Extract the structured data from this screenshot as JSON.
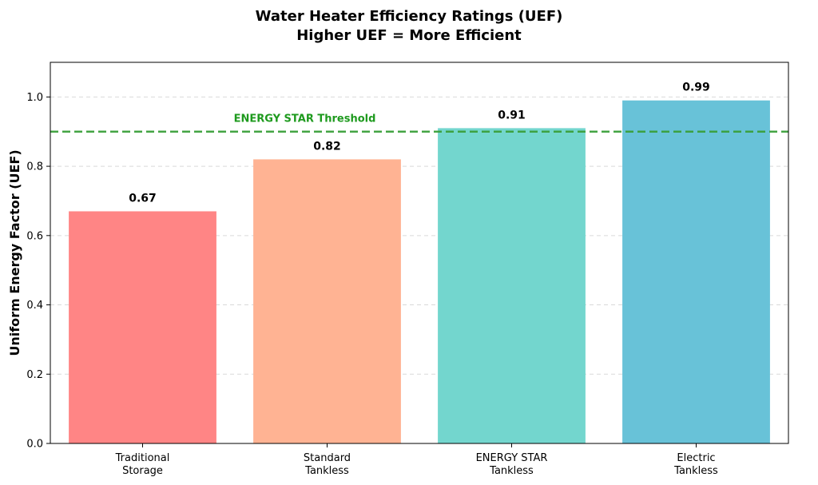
{
  "chart_data": {
    "type": "bar",
    "title_lines": [
      "Water Heater Efficiency Ratings (UEF)",
      "Higher UEF = More Efficient"
    ],
    "xlabel": "",
    "ylabel": "Uniform Energy Factor (UEF)",
    "ylim": [
      0,
      1.1
    ],
    "yticks": [
      0.0,
      0.2,
      0.4,
      0.6,
      0.8,
      1.0
    ],
    "ytick_labels": [
      "0.0",
      "0.2",
      "0.4",
      "0.6",
      "0.8",
      "1.0"
    ],
    "grid": "horizontal dashed",
    "categories": [
      [
        "Traditional",
        "Storage"
      ],
      [
        "Standard",
        "Tankless"
      ],
      [
        "ENERGY STAR",
        "Tankless"
      ],
      [
        "Electric",
        "Tankless"
      ]
    ],
    "values": [
      0.67,
      0.82,
      0.91,
      0.99
    ],
    "value_labels": [
      "0.67",
      "0.82",
      "0.91",
      "0.99"
    ],
    "bar_colors": [
      "#FF8585",
      "#FFB393",
      "#73D6CE",
      "#68C2D8"
    ],
    "threshold": {
      "value": 0.9,
      "label": "ENERGY STAR Threshold",
      "color": "#3A9F3A",
      "label_color": "#1E9A1E"
    }
  }
}
